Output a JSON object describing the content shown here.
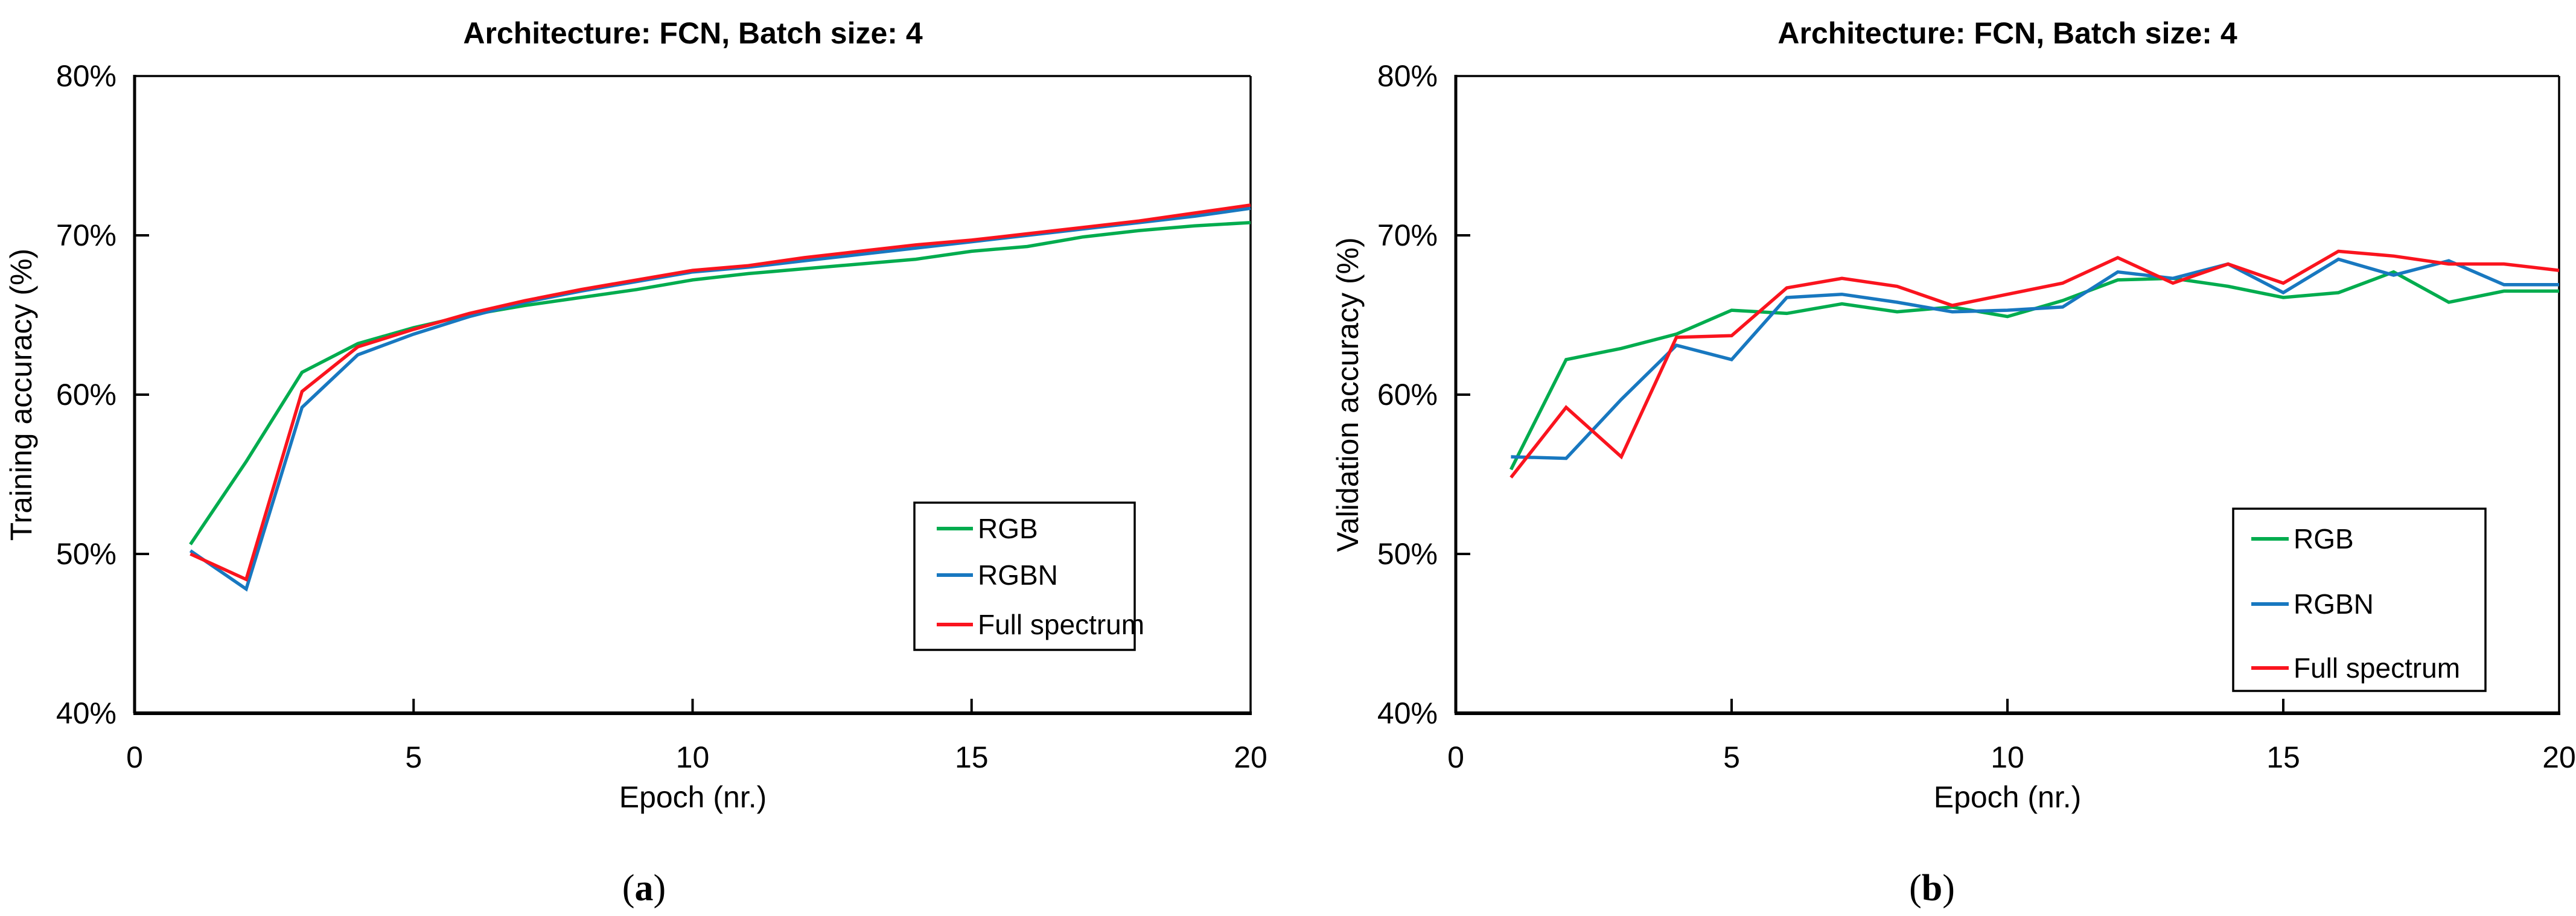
{
  "figure": {
    "panels": [
      {
        "caption_open": "(",
        "caption_letter": "a",
        "caption_close": ")"
      },
      {
        "caption_open": "(",
        "caption_letter": "b",
        "caption_close": ")"
      }
    ]
  },
  "colors": {
    "rgb": "#00AC4E",
    "rgbn": "#1878C0",
    "full_spectrum": "#FA141E",
    "axis": "#000000",
    "background": "#FFFFFF"
  },
  "chart_data": [
    {
      "type": "line",
      "title": "Architecture: FCN, Batch size: 4",
      "xlabel": "Epoch (nr.)",
      "ylabel": "Training accuracy (%)",
      "xlim": [
        0,
        20
      ],
      "ylim": [
        40,
        80
      ],
      "xticks": [
        0,
        5,
        10,
        15,
        20
      ],
      "xtick_labels": [
        "0",
        "5",
        "10",
        "15",
        "20"
      ],
      "yticks": [
        40,
        50,
        60,
        70,
        80
      ],
      "ytick_labels": [
        "40%",
        "50%",
        "60%",
        "70%",
        "80%"
      ],
      "grid": false,
      "legend_position": "inside-bottom-right",
      "x": [
        1,
        2,
        3,
        4,
        5,
        6,
        7,
        8,
        9,
        10,
        11,
        12,
        13,
        14,
        15,
        16,
        17,
        18,
        19,
        20
      ],
      "series": [
        {
          "name": "RGB",
          "color_key": "rgb",
          "values": [
            50.6,
            55.8,
            61.4,
            63.2,
            64.2,
            65.0,
            65.6,
            66.1,
            66.6,
            67.2,
            67.6,
            67.9,
            68.2,
            68.5,
            69.0,
            69.3,
            69.9,
            70.3,
            70.6,
            70.8
          ]
        },
        {
          "name": "RGBN",
          "color_key": "rgbn",
          "values": [
            50.2,
            47.8,
            59.2,
            62.5,
            63.8,
            64.9,
            65.8,
            66.5,
            67.1,
            67.7,
            68.0,
            68.4,
            68.8,
            69.2,
            69.6,
            70.0,
            70.4,
            70.8,
            71.2,
            71.7
          ]
        },
        {
          "name": "Full spectrum",
          "color_key": "full_spectrum",
          "values": [
            50.0,
            48.4,
            60.2,
            63.0,
            64.1,
            65.1,
            65.9,
            66.6,
            67.2,
            67.8,
            68.1,
            68.6,
            69.0,
            69.4,
            69.7,
            70.1,
            70.5,
            70.9,
            71.4,
            71.9
          ]
        }
      ]
    },
    {
      "type": "line",
      "title": "Architecture: FCN, Batch size: 4",
      "xlabel": "Epoch (nr.)",
      "ylabel": "Validation accuracy (%)",
      "xlim": [
        0,
        20
      ],
      "ylim": [
        40,
        80
      ],
      "xticks": [
        0,
        5,
        10,
        15,
        20
      ],
      "xtick_labels": [
        "0",
        "5",
        "10",
        "15",
        "20"
      ],
      "yticks": [
        40,
        50,
        60,
        70,
        80
      ],
      "ytick_labels": [
        "40%",
        "50%",
        "60%",
        "70%",
        "80%"
      ],
      "grid": false,
      "legend_position": "inside-bottom-right",
      "x": [
        1,
        2,
        3,
        4,
        5,
        6,
        7,
        8,
        9,
        10,
        11,
        12,
        13,
        14,
        15,
        16,
        17,
        18,
        19,
        20
      ],
      "series": [
        {
          "name": "RGB",
          "color_key": "rgb",
          "values": [
            55.3,
            62.2,
            62.9,
            63.8,
            65.3,
            65.1,
            65.7,
            65.2,
            65.5,
            64.9,
            65.9,
            67.2,
            67.3,
            66.8,
            66.1,
            66.4,
            67.7,
            65.8,
            66.5,
            66.5
          ]
        },
        {
          "name": "RGBN",
          "color_key": "rgbn",
          "values": [
            56.1,
            56.0,
            59.7,
            63.1,
            62.2,
            66.1,
            66.3,
            65.8,
            65.2,
            65.3,
            65.5,
            67.7,
            67.3,
            68.2,
            66.4,
            68.5,
            67.5,
            68.4,
            66.9,
            66.9
          ]
        },
        {
          "name": "Full spectrum",
          "color_key": "full_spectrum",
          "values": [
            54.8,
            59.2,
            56.1,
            63.6,
            63.7,
            66.7,
            67.3,
            66.8,
            65.6,
            66.3,
            67.0,
            68.6,
            67.0,
            68.2,
            67.0,
            69.0,
            68.7,
            68.2,
            68.2,
            67.8
          ]
        }
      ]
    }
  ]
}
